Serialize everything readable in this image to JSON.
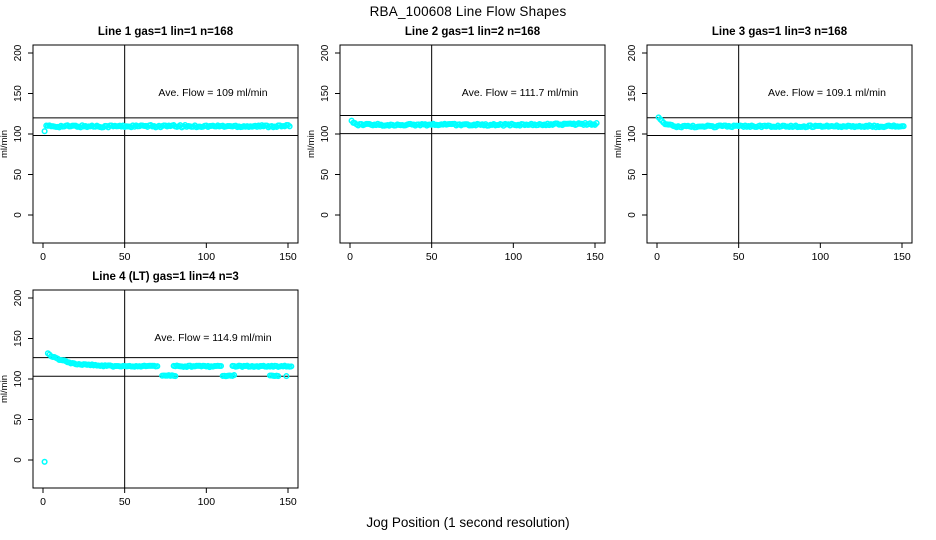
{
  "title": "RBA_100608  Line Flow Shapes",
  "xlabel": "Jog Position (1 second resolution)",
  "colors": {
    "points": "#00FFFF",
    "axis": "#000000",
    "background": "#FFFFFF"
  },
  "chart_data": [
    {
      "type": "scatter",
      "title": "Line 1 gas=1 lin=1 n=168",
      "annotation": "Ave. Flow =  109  ml/min",
      "ave_flow": 109,
      "ylabel": "ml/min",
      "xticks": [
        0,
        50,
        100,
        150
      ],
      "yticks": [
        0,
        50,
        100,
        150,
        200
      ],
      "xlim": [
        0,
        155
      ],
      "ylim": [
        -35,
        210
      ],
      "ref_lines_y": [
        119.9,
        98.1
      ],
      "vline_x": 50,
      "grid": false,
      "series": [
        {
          "name": "flow-trace",
          "noise": 1.4,
          "segments": [
            {
              "x0": 1,
              "x1": 1,
              "y0": 104,
              "y1": 104
            },
            {
              "x0": 2,
              "x1": 151,
              "y0": 109.5,
              "y1": 109.7
            }
          ]
        }
      ]
    },
    {
      "type": "scatter",
      "title": "Line 2 gas=1 lin=2 n=168",
      "annotation": "Ave. Flow =  111.7  ml/min",
      "ave_flow": 111.7,
      "ylabel": "ml/min",
      "xticks": [
        0,
        50,
        100,
        150
      ],
      "yticks": [
        0,
        50,
        100,
        150,
        200
      ],
      "xlim": [
        0,
        155
      ],
      "ylim": [
        -35,
        210
      ],
      "ref_lines_y": [
        122.9,
        100.5
      ],
      "vline_x": 50,
      "grid": false,
      "series": [
        {
          "name": "flow-trace",
          "noise": 1.2,
          "segments": [
            {
              "x0": 1,
              "x1": 1,
              "y0": 115.5,
              "y1": 115.5
            },
            {
              "x0": 2,
              "x1": 4,
              "y0": 113,
              "y1": 111.8
            },
            {
              "x0": 5,
              "x1": 110,
              "y0": 111.4,
              "y1": 111.4
            },
            {
              "x0": 111,
              "x1": 151,
              "y0": 111.6,
              "y1": 112.4
            }
          ]
        }
      ]
    },
    {
      "type": "scatter",
      "title": "Line 3 gas=1 lin=3 n=168",
      "annotation": "Ave. Flow =  109.1  ml/min",
      "ave_flow": 109.1,
      "ylabel": "ml/min",
      "xticks": [
        0,
        50,
        100,
        150
      ],
      "yticks": [
        0,
        50,
        100,
        150,
        200
      ],
      "xlim": [
        0,
        155
      ],
      "ylim": [
        -35,
        210
      ],
      "ref_lines_y": [
        120.0,
        98.2
      ],
      "vline_x": 50,
      "grid": false,
      "series": [
        {
          "name": "flow-trace",
          "noise": 1.2,
          "segments": [
            {
              "x0": 1,
              "x1": 1,
              "y0": 119.5,
              "y1": 119.5
            },
            {
              "x0": 2,
              "x1": 5,
              "y0": 117.5,
              "y1": 112.5
            },
            {
              "x0": 6,
              "x1": 12,
              "y0": 111.5,
              "y1": 109.6
            },
            {
              "x0": 13,
              "x1": 151,
              "y0": 109.3,
              "y1": 109.6
            }
          ]
        }
      ]
    },
    {
      "type": "scatter",
      "title": "Line 4 (LT) gas=1 lin=4 n=3",
      "annotation": "Ave. Flow =  114.9  ml/min",
      "ave_flow": 114.9,
      "ylabel": "ml/min",
      "xticks": [
        0,
        50,
        100,
        150
      ],
      "yticks": [
        0,
        50,
        100,
        150,
        200
      ],
      "xlim": [
        0,
        155
      ],
      "ylim": [
        -35,
        210
      ],
      "ref_lines_y": [
        126.4,
        103.4
      ],
      "vline_x": 50,
      "grid": false,
      "series": [
        {
          "name": "flow-trace",
          "noise": 0.9,
          "segments": [
            {
              "x0": 1,
              "x1": 1,
              "y0": -2,
              "y1": -2
            },
            {
              "x0": 3,
              "x1": 8,
              "y0": 131,
              "y1": 125.5
            },
            {
              "x0": 9,
              "x1": 18,
              "y0": 124.5,
              "y1": 119.5
            },
            {
              "x0": 19,
              "x1": 34,
              "y0": 119,
              "y1": 116.5
            },
            {
              "x0": 35,
              "x1": 70,
              "y0": 116.2,
              "y1": 115.6
            },
            {
              "x0": 80,
              "x1": 109,
              "y0": 115.6,
              "y1": 115.6
            },
            {
              "x0": 116,
              "x1": 152,
              "y0": 115.6,
              "y1": 115.8
            }
          ]
        },
        {
          "name": "low-flow-dips",
          "noise": 0.6,
          "segments": [
            {
              "x0": 73,
              "x1": 81,
              "y0": 104.2,
              "y1": 104.2
            },
            {
              "x0": 110,
              "x1": 117,
              "y0": 104.0,
              "y1": 104.2
            },
            {
              "x0": 139,
              "x1": 144,
              "y0": 104.2,
              "y1": 104.2
            },
            {
              "x0": 149,
              "x1": 149,
              "y0": 104.0,
              "y1": 104.0
            }
          ]
        }
      ]
    }
  ]
}
